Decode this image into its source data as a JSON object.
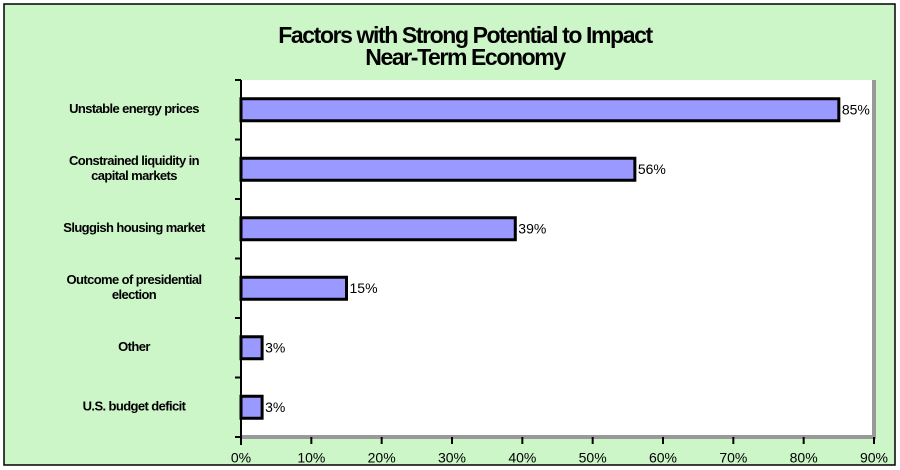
{
  "chart_data": {
    "type": "bar",
    "orientation": "horizontal",
    "title": "Factors with Strong Potential to Impact\nNear-Term Economy",
    "categories": [
      "Unstable energy prices",
      "Constrained liquidity in\ncapital markets",
      "Sluggish housing market",
      "Outcome of presidential\nelection",
      "Other",
      "U.S. budget deficit"
    ],
    "values": [
      85,
      56,
      39,
      15,
      3,
      3
    ],
    "value_labels": [
      "85%",
      "56%",
      "39%",
      "15%",
      "3%",
      "3%"
    ],
    "color": "#9999ff",
    "xlim": [
      0,
      90
    ],
    "xticks": [
      {
        "value": 0,
        "label": "0%"
      },
      {
        "value": 10,
        "label": "10%"
      },
      {
        "value": 20,
        "label": "20%"
      },
      {
        "value": 30,
        "label": "30%"
      },
      {
        "value": 40,
        "label": "40%"
      },
      {
        "value": 50,
        "label": "50%"
      },
      {
        "value": 60,
        "label": "60%"
      },
      {
        "value": 70,
        "label": "70%"
      },
      {
        "value": 80,
        "label": "80%"
      },
      {
        "value": 90,
        "label": "90%"
      }
    ],
    "grid": false
  }
}
